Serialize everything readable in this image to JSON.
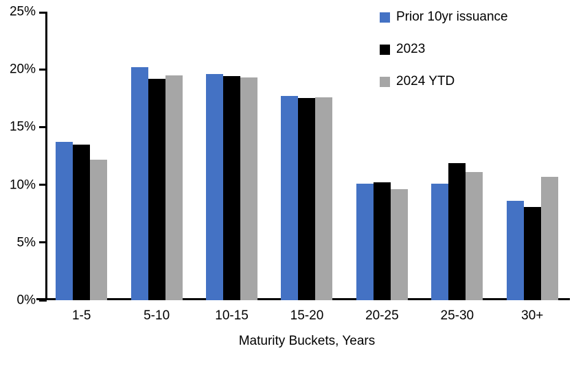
{
  "chart_data": {
    "type": "bar",
    "title": "",
    "xlabel": "Maturity Buckets, Years",
    "ylabel": "",
    "ylim": [
      0,
      25
    ],
    "y_ticks": [
      0,
      5,
      10,
      15,
      20,
      25
    ],
    "y_tick_labels": [
      "0%",
      "5%",
      "10%",
      "15%",
      "20%",
      "25%"
    ],
    "grid": false,
    "legend_position": "top-right",
    "categories": [
      "1-5",
      "5-10",
      "10-15",
      "15-20",
      "20-25",
      "25-30",
      "30+"
    ],
    "series": [
      {
        "name": "Prior 10yr issuance",
        "color": "#4472C4",
        "values": [
          13.7,
          20.2,
          19.6,
          17.7,
          10.1,
          10.1,
          8.6
        ]
      },
      {
        "name": "2023",
        "color": "#000000",
        "values": [
          13.5,
          19.2,
          19.4,
          17.5,
          10.2,
          11.9,
          8.1
        ]
      },
      {
        "name": "2024 YTD",
        "color": "#A6A6A6",
        "values": [
          12.2,
          19.5,
          19.3,
          17.6,
          9.6,
          11.1,
          10.7
        ]
      }
    ]
  }
}
